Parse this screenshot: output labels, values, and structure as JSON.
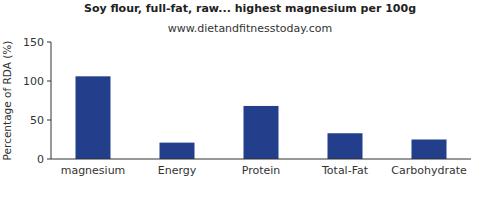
{
  "chart_data": {
    "type": "bar",
    "title": "Soy flour, full-fat, raw... highest magnesium per 100g",
    "subtitle": "www.dietandfitnesstoday.com",
    "y_label": "Percentage of RDA (%)",
    "categories": [
      "magnesium",
      "Energy",
      "Protein",
      "Total-Fat",
      "Carbohydrate"
    ],
    "values": [
      106,
      21,
      68,
      33,
      25
    ],
    "color": "#233f8c",
    "ylim": [
      0,
      150
    ],
    "yticks": [
      0,
      50,
      100,
      150
    ],
    "grid": false
  }
}
